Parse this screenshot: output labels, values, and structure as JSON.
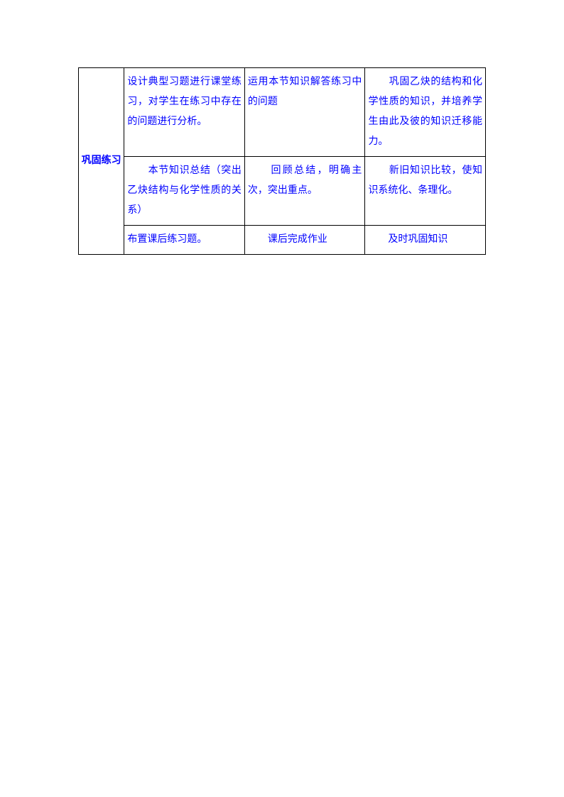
{
  "table": {
    "header": "巩固练习",
    "rows": [
      {
        "left": "设计典型习题进行课堂练习，对学生在练习中存在的问题进行分析。",
        "mid": "运用本节知识解答练习中的问题",
        "right": "　　巩固乙炔的结构和化学性质的知识，并培养学生由此及彼的知识迁移能力。"
      },
      {
        "left": "　　本节知识总结（突出乙炔结构与化学性质的关系）",
        "mid": "　　回顾总结，明确主次，突出重点。",
        "right": "　　新旧知识比较，使知识系统化、条理化。"
      },
      {
        "left": "布置课后练习题。",
        "mid": "　　课后完成作业",
        "right": "　　及时巩固知识"
      }
    ]
  }
}
